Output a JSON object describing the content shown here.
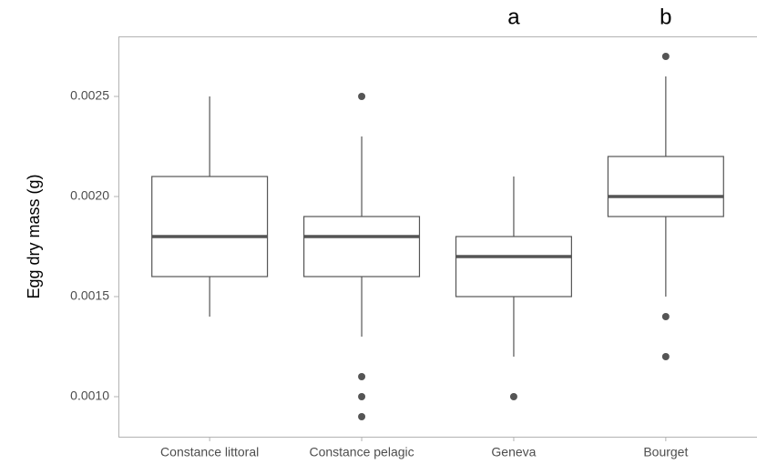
{
  "chart_data": {
    "type": "box",
    "y_label": "Egg dry mass (g)",
    "categories": [
      "Constance littoral",
      "Constance pelagic",
      "Geneva",
      "Bourget"
    ],
    "group_labels": [
      null,
      null,
      "a",
      "b"
    ],
    "whisker_low": [
      0.0014,
      0.0013,
      0.0012,
      0.0015
    ],
    "q1": [
      0.0016,
      0.0016,
      0.0015,
      0.0019
    ],
    "median": [
      0.0018,
      0.0018,
      0.0017,
      0.002
    ],
    "q3": [
      0.0021,
      0.0019,
      0.0018,
      0.0022
    ],
    "whisker_high": [
      0.0025,
      0.0023,
      0.0021,
      0.0026
    ],
    "outliers": [
      [],
      [
        0.0025,
        0.0011,
        0.001,
        0.0009
      ],
      [
        0.001
      ],
      [
        0.0027,
        0.0014,
        0.0012
      ]
    ],
    "color": "#555555",
    "ylim": [
      0.0008,
      0.0028
    ],
    "yticks": [
      {
        "value": 0.001,
        "label": "0.0010"
      },
      0.0015,
      {
        "value": 0.002,
        "label": "0.0020"
      },
      0.0025
    ]
  }
}
